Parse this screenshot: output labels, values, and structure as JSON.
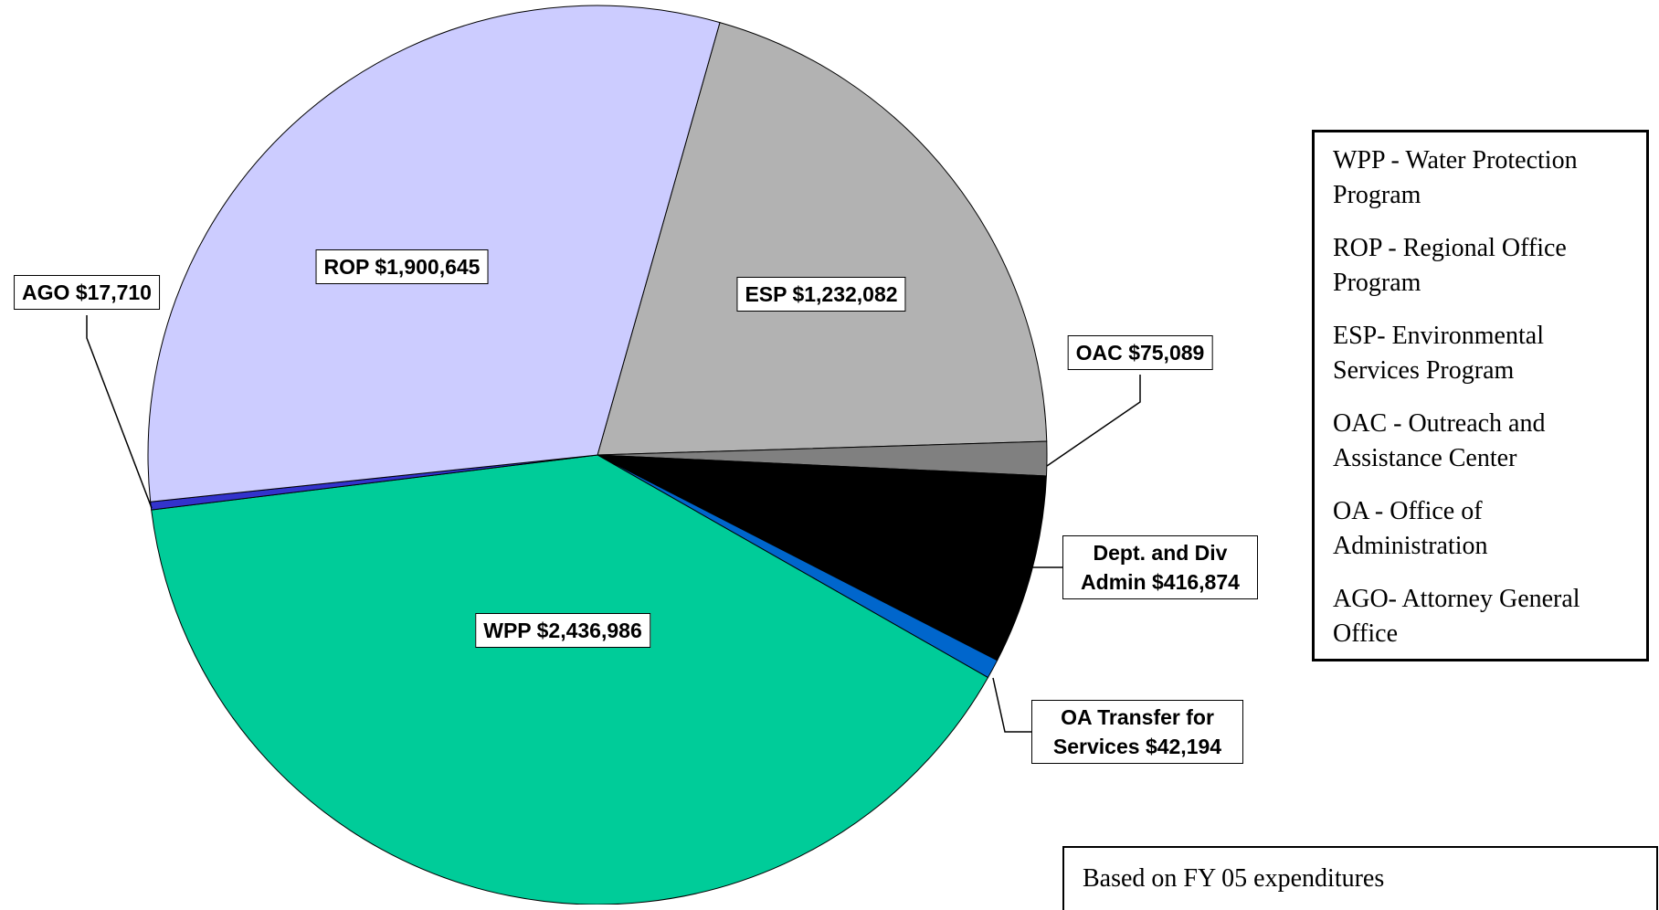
{
  "chart_data": {
    "type": "pie",
    "categories": [
      "ESP",
      "OAC",
      "Dept. and Div Admin",
      "OA Transfer for Services",
      "WPP",
      "AGO",
      "ROP"
    ],
    "values": [
      1232082,
      75089,
      416874,
      42194,
      2436986,
      17710,
      1900645
    ],
    "value_labels": [
      "$1,232,082",
      "$75,089",
      "$416,874",
      "$42,194",
      "$2,436,986",
      "$17,710",
      "$1,900,645"
    ],
    "colors": [
      "#b2b2b2",
      "#808080",
      "#000000",
      "#0066cc",
      "#00cc99",
      "#3333cc",
      "#ccccff"
    ],
    "legend": [
      "WPP - Water Protection Program",
      "ROP - Regional Office Program",
      "ESP- Environmental Services Program",
      "OAC - Outreach and Assistance Center",
      "OA - Office of Administration",
      "AGO- Attorney General Office"
    ],
    "note": "Based on FY 05 expenditures"
  }
}
